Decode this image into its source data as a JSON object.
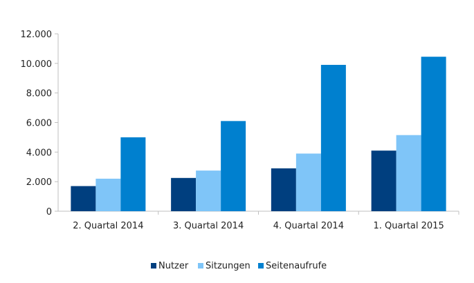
{
  "chart_data": {
    "type": "bar",
    "categories": [
      "2. Quartal 2014",
      "3. Quartal 2014",
      "4. Quartal 2014",
      "1. Quartal 2015"
    ],
    "series": [
      {
        "name": "Nutzer",
        "color": "#003f7f",
        "values": [
          1700,
          2250,
          2900,
          4100
        ]
      },
      {
        "name": "Sitzungen",
        "color": "#7fc5f8",
        "values": [
          2200,
          2750,
          3900,
          5150
        ]
      },
      {
        "name": "Seitenaufrufe",
        "color": "#0080cf",
        "values": [
          5000,
          6100,
          9900,
          10450
        ]
      }
    ],
    "ylim": [
      0,
      12000
    ],
    "yticks": [
      0,
      2000,
      4000,
      6000,
      8000,
      10000,
      12000
    ],
    "ytick_labels": [
      "0",
      "2.000",
      "4.000",
      "6.000",
      "8.000",
      "10.000",
      "12.000"
    ],
    "grid": false,
    "legend_position": "bottom"
  }
}
